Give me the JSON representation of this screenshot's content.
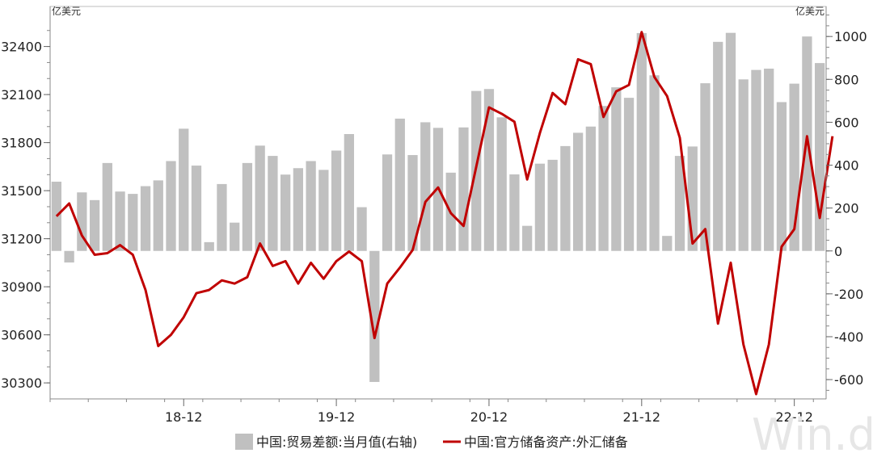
{
  "chart_data": {
    "type": "bar+line",
    "left_axis": {
      "unit": "亿美元",
      "range": [
        30200,
        32650
      ],
      "ticks": [
        30300,
        30600,
        30900,
        31200,
        31500,
        31800,
        32100,
        32400
      ]
    },
    "right_axis": {
      "unit": "亿美元",
      "range": [
        -690,
        1140
      ],
      "ticks": [
        -600,
        -400,
        -200,
        0,
        200,
        400,
        600,
        800,
        1000
      ]
    },
    "x_ticks": [
      "18-12",
      "19-12",
      "20-12",
      "21-12",
      "22-12"
    ],
    "x_tick_index": [
      10,
      22,
      34,
      46,
      58
    ],
    "series": [
      {
        "name": "中国:贸易差额:当月值(右轴)",
        "kind": "bar",
        "axis": "right",
        "color": "#c0c0c0",
        "values": [
          323,
          -54,
          273,
          237,
          410,
          277,
          266,
          302,
          329,
          419,
          570,
          398,
          41,
          312,
          132,
          410,
          491,
          443,
          356,
          386,
          419,
          378,
          468,
          545,
          204,
          -611,
          450,
          617,
          447,
          600,
          574,
          365,
          576,
          746,
          755,
          623,
          357,
          117,
          407,
          425,
          489,
          551,
          580,
          676,
          763,
          714,
          1016,
          819,
          70,
          443,
          487,
          782,
          975,
          1017,
          800,
          844,
          850,
          694,
          780,
          1000,
          876
        ]
      },
      {
        "name": "中国:官方储备资产:外汇储备",
        "kind": "line",
        "axis": "left",
        "color": "#c00000",
        "values": [
          31340,
          31420,
          31220,
          31100,
          31110,
          31160,
          31100,
          30880,
          30530,
          30600,
          30710,
          30860,
          30880,
          30940,
          30920,
          30960,
          31170,
          31030,
          31060,
          30920,
          31050,
          30950,
          31060,
          31120,
          31060,
          30580,
          30920,
          31020,
          31130,
          31430,
          31520,
          31360,
          31280,
          31650,
          32020,
          31980,
          31930,
          31570,
          31860,
          32110,
          32040,
          32320,
          32290,
          31960,
          32120,
          32160,
          32490,
          32210,
          32090,
          31830,
          31170,
          31260,
          30670,
          31050,
          30540,
          30230,
          30540,
          31150,
          31260,
          31840,
          31330,
          31840
        ]
      }
    ]
  },
  "legend": {
    "bar_label": "中国:贸易差额:当月值(右轴)",
    "line_label": "中国:官方储备资产:外汇储备"
  },
  "watermark": "Win.d"
}
